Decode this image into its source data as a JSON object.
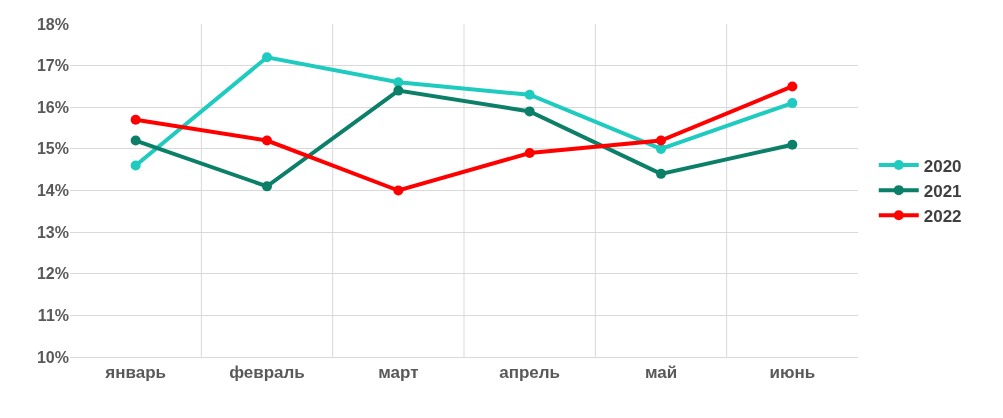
{
  "chart_data": {
    "type": "line",
    "categories": [
      "январь",
      "февраль",
      "март",
      "апрель",
      "май",
      "июнь"
    ],
    "series": [
      {
        "name": "2020",
        "color": "#1ecbbe",
        "values": [
          14.6,
          17.2,
          16.6,
          16.3,
          15.0,
          16.1
        ]
      },
      {
        "name": "2021",
        "color": "#0b7f68",
        "values": [
          15.2,
          14.1,
          16.4,
          15.9,
          14.4,
          15.1
        ]
      },
      {
        "name": "2022",
        "color": "#ff0000",
        "values": [
          15.7,
          15.2,
          14.0,
          14.9,
          15.2,
          16.5
        ]
      }
    ],
    "ylim": [
      10,
      18
    ],
    "yticks": [
      {
        "value": 10,
        "label": "10%"
      },
      {
        "value": 11,
        "label": "11%"
      },
      {
        "value": 12,
        "label": "12%"
      },
      {
        "value": 13,
        "label": "13%"
      },
      {
        "value": 14,
        "label": "14%"
      },
      {
        "value": 15,
        "label": "15%"
      },
      {
        "value": 16,
        "label": "16%"
      },
      {
        "value": 17,
        "label": "17%"
      },
      {
        "value": 18,
        "label": "18%"
      }
    ],
    "grid": true,
    "legend": "right",
    "marker": "circle",
    "line_style": "solid"
  }
}
